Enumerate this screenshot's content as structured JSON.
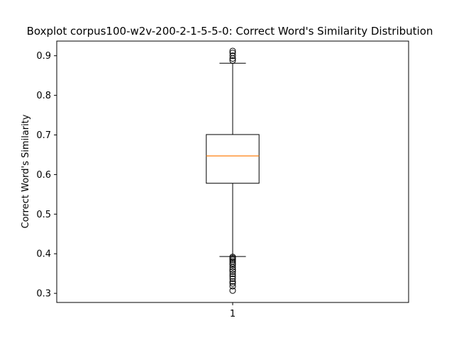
{
  "chart_data": {
    "type": "boxplot",
    "title": "Boxplot corpus100-w2v-200-2-1-5-5-0: Correct Word's Similarity Distribution",
    "xlabel": "",
    "ylabel": "Correct Word's Similarity",
    "ylim": [
      0.277,
      0.937
    ],
    "yticks": [
      0.3,
      0.4,
      0.5,
      0.6,
      0.7,
      0.8,
      0.9
    ],
    "ytick_labels": [
      "0.3",
      "0.4",
      "0.5",
      "0.6",
      "0.7",
      "0.8",
      "0.9"
    ],
    "categories": [
      "1"
    ],
    "boxes": [
      {
        "category": "1",
        "q1": 0.578,
        "median": 0.647,
        "q3": 0.701,
        "whisker_low": 0.393,
        "whisker_high": 0.881,
        "outliers": [
          0.307,
          0.318,
          0.325,
          0.33,
          0.337,
          0.343,
          0.349,
          0.355,
          0.36,
          0.366,
          0.372,
          0.376,
          0.381,
          0.385,
          0.389,
          0.392,
          0.888,
          0.893,
          0.9,
          0.907,
          0.912
        ]
      }
    ],
    "grid": false,
    "colors": {
      "box": "#000000",
      "median": "#ff7f0e",
      "outlier": "#000000"
    }
  }
}
